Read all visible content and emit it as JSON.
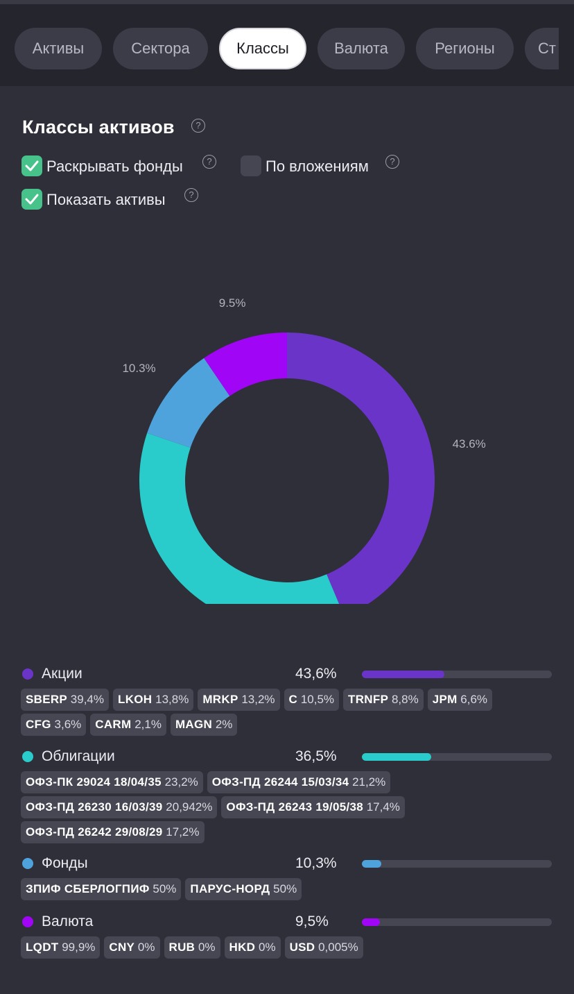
{
  "tabs": [
    {
      "label": "Активы"
    },
    {
      "label": "Сектора"
    },
    {
      "label": "Классы",
      "active": true
    },
    {
      "label": "Валюта"
    },
    {
      "label": "Регионы"
    },
    {
      "label": "Ст"
    }
  ],
  "section": {
    "title": "Классы активов",
    "help": "?"
  },
  "options": {
    "expand_funds": {
      "label": "Раскрывать фонды",
      "checked": true
    },
    "by_investments": {
      "label": "По вложениям",
      "checked": false
    },
    "show_assets": {
      "label": "Показать активы",
      "checked": true
    }
  },
  "chart_data": {
    "type": "pie",
    "donut": true,
    "slices": [
      {
        "name": "Акции",
        "value": 43.6,
        "label": "43.6%",
        "color": "#6b34c9"
      },
      {
        "name": "Облигации",
        "value": 36.5,
        "label": "36.5%",
        "color": "#29cccb"
      },
      {
        "name": "Фонды",
        "value": 10.3,
        "label": "10.3%",
        "color": "#4ea3dc"
      },
      {
        "name": "Валюта",
        "value": 9.5,
        "label": "9.5%",
        "color": "#a006f5"
      }
    ]
  },
  "legend": [
    {
      "name": "Акции",
      "percent": "43,6%",
      "fraction": 0.436,
      "color": "#6b34c9",
      "chips": [
        [
          {
            "ticker": "SBERP",
            "value": "39,4%"
          },
          {
            "ticker": "LKOH",
            "value": "13,8%"
          },
          {
            "ticker": "MRKP",
            "value": "13,2%"
          },
          {
            "ticker": "C",
            "value": "10,5%"
          },
          {
            "ticker": "TRNFP",
            "value": "8,8%"
          },
          {
            "ticker": "JPM",
            "value": "6,6%"
          }
        ],
        [
          {
            "ticker": "CFG",
            "value": "3,6%"
          },
          {
            "ticker": "CARM",
            "value": "2,1%"
          },
          {
            "ticker": "MAGN",
            "value": "2%"
          }
        ]
      ]
    },
    {
      "name": "Облигации",
      "percent": "36,5%",
      "fraction": 0.365,
      "color": "#29cccb",
      "chips": [
        [
          {
            "ticker": "ОФЗ-ПК 29024 18/04/35",
            "value": "23,2%"
          },
          {
            "ticker": "ОФЗ-ПД 26244 15/03/34",
            "value": "21,2%"
          }
        ],
        [
          {
            "ticker": "ОФЗ-ПД 26230 16/03/39",
            "value": "20,942%"
          },
          {
            "ticker": "ОФЗ-ПД 26243 19/05/38",
            "value": "17,4%"
          }
        ],
        [
          {
            "ticker": "ОФЗ-ПД 26242 29/08/29",
            "value": "17,2%"
          }
        ]
      ]
    },
    {
      "name": "Фонды",
      "percent": "10,3%",
      "fraction": 0.103,
      "color": "#4ea3dc",
      "chips": [
        [
          {
            "ticker": "ЗПИФ СБЕРЛОГПИФ",
            "value": "50%"
          },
          {
            "ticker": "ПАРУС-НОРД",
            "value": "50%"
          }
        ]
      ]
    },
    {
      "name": "Валюта",
      "percent": "9,5%",
      "fraction": 0.095,
      "color": "#a006f5",
      "chips": [
        [
          {
            "ticker": "LQDT",
            "value": "99,9%"
          },
          {
            "ticker": "CNY",
            "value": "0%"
          },
          {
            "ticker": "RUB",
            "value": "0%"
          },
          {
            "ticker": "HKD",
            "value": "0%"
          },
          {
            "ticker": "USD",
            "value": "0,005%"
          }
        ]
      ]
    }
  ]
}
